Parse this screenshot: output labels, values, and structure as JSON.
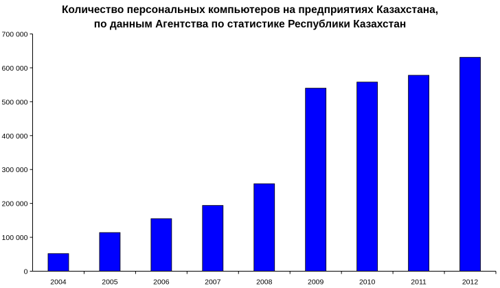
{
  "chart_data": {
    "type": "bar",
    "title_lines": [
      "Количество персональных компьютеров на предприятиях Казахстана,",
      "по данным Агентства по статистике Республики Казахстан"
    ],
    "categories": [
      "2004",
      "2005",
      "2006",
      "2007",
      "2008",
      "2009",
      "2010",
      "2011",
      "2012"
    ],
    "values": [
      52000,
      114000,
      155000,
      194000,
      258000,
      540000,
      558000,
      578000,
      631000
    ],
    "ylim": [
      0,
      700000
    ],
    "ytick_values": [
      0,
      100000,
      200000,
      300000,
      400000,
      500000,
      600000,
      700000
    ],
    "ytick_labels": [
      "0",
      "100 000",
      "200 000",
      "300 000",
      "400 000",
      "500 000",
      "600 000",
      "700 000"
    ],
    "bar_color": "#0000FF",
    "grid": false,
    "legend": "none",
    "xlabel": "",
    "ylabel": ""
  }
}
